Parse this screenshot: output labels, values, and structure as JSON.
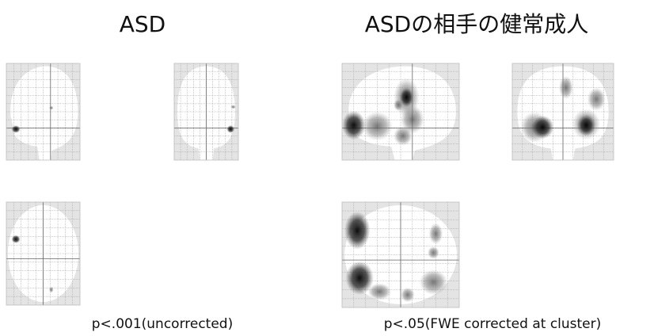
{
  "titles": {
    "left": "ASD",
    "right": "ASDの相手の健常成人"
  },
  "captions": {
    "left": "p<.001(uncorrected)",
    "right": "p<.05(FWE corrected at cluster)"
  }
}
